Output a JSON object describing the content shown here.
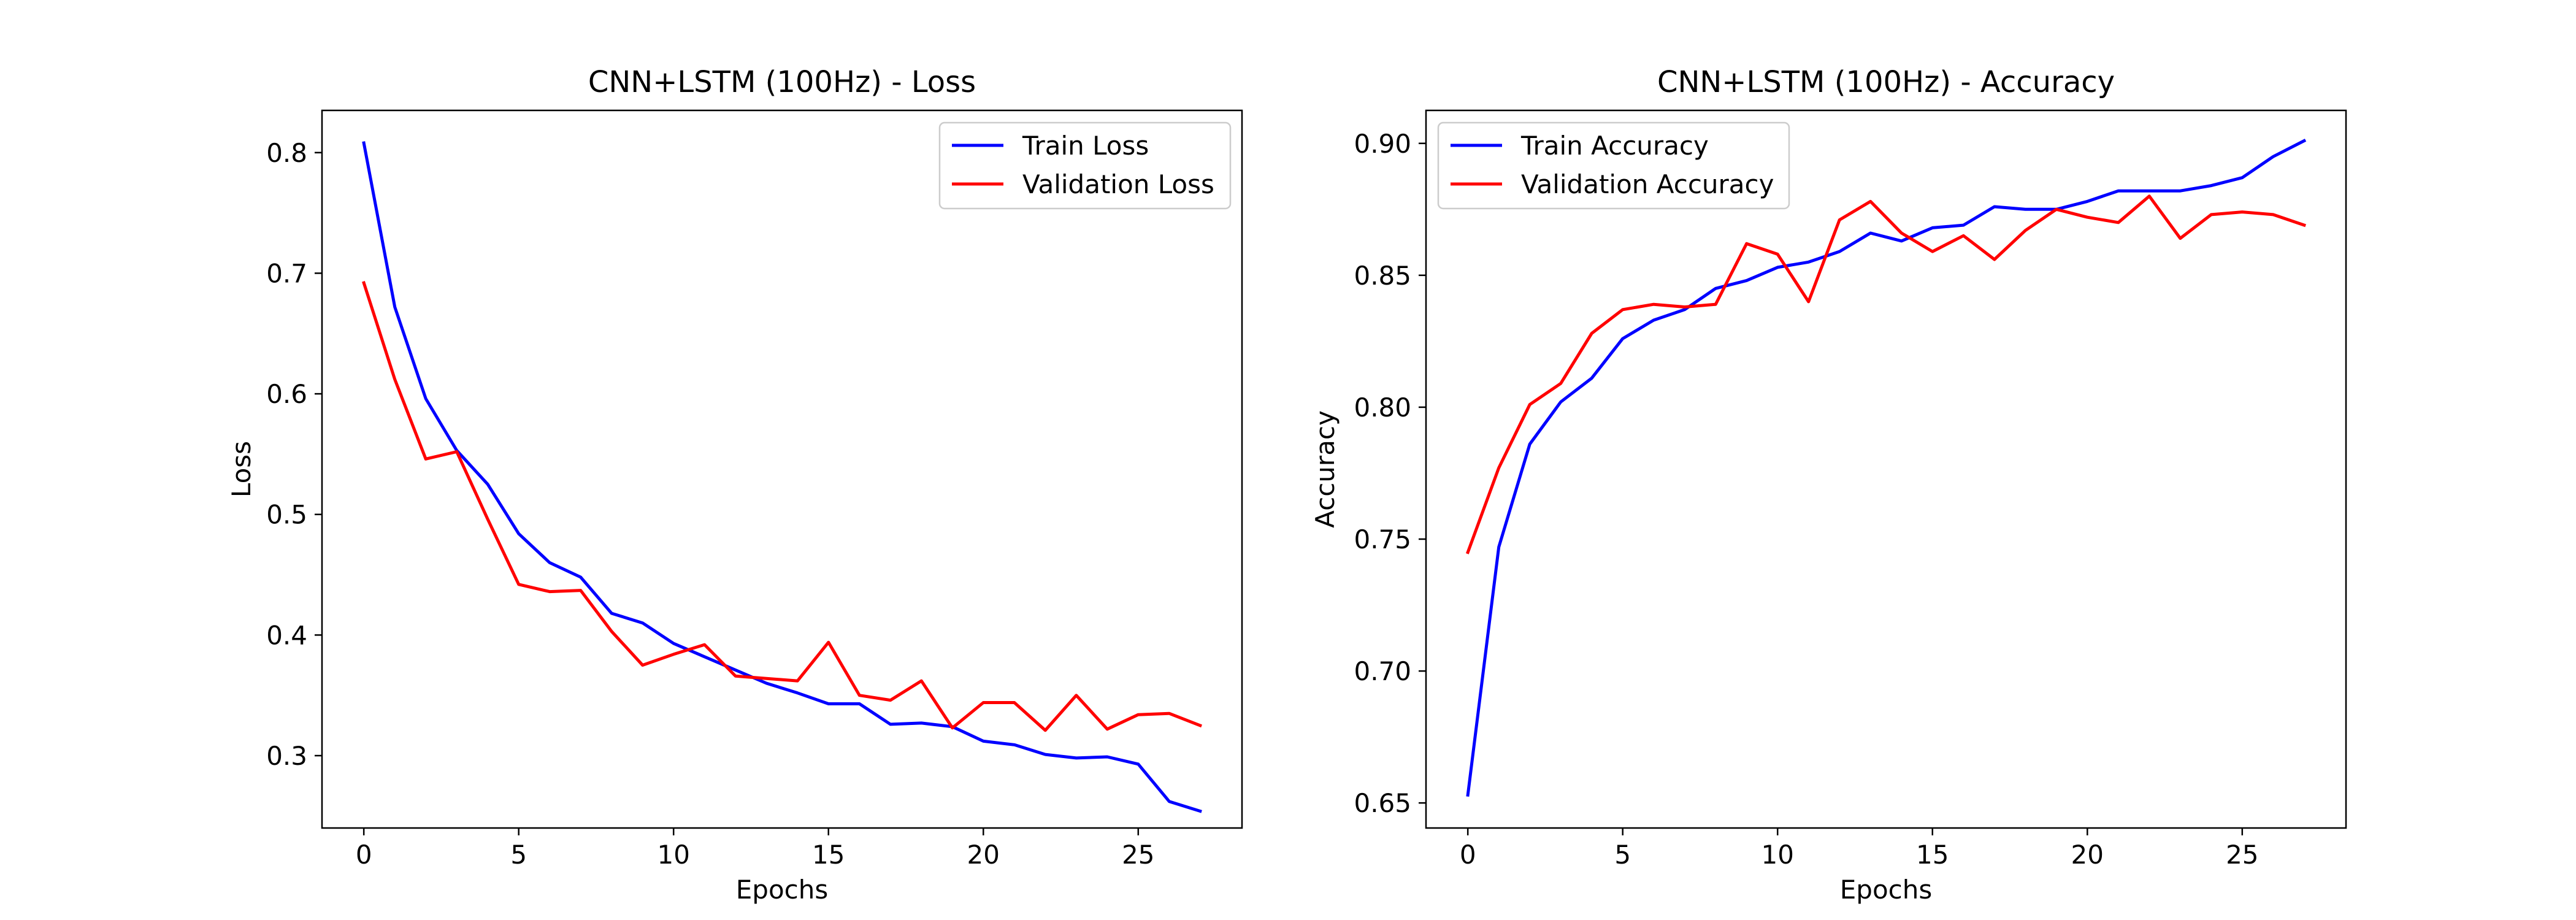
{
  "chart_data": [
    {
      "type": "line",
      "title": "CNN+LSTM (100Hz) - Loss",
      "xlabel": "Epochs",
      "ylabel": "Loss",
      "xlim": [
        -1.35,
        28.35
      ],
      "ylim": [
        0.24,
        0.835
      ],
      "xticks": [
        0,
        5,
        10,
        15,
        20,
        25
      ],
      "yticks": [
        0.3,
        0.4,
        0.5,
        0.6,
        0.7,
        0.8
      ],
      "ytick_labels": [
        "0.3",
        "0.4",
        "0.5",
        "0.6",
        "0.7",
        "0.8"
      ],
      "grid": false,
      "legend_position": "upper right",
      "x": [
        0,
        1,
        2,
        3,
        4,
        5,
        6,
        7,
        8,
        9,
        10,
        11,
        12,
        13,
        14,
        15,
        16,
        17,
        18,
        19,
        20,
        21,
        22,
        23,
        24,
        25,
        26,
        27
      ],
      "series": [
        {
          "name": "Train Loss",
          "color": "#0000ff",
          "values": [
            0.808,
            0.672,
            0.596,
            0.553,
            0.525,
            0.484,
            0.46,
            0.448,
            0.418,
            0.41,
            0.393,
            0.382,
            0.371,
            0.36,
            0.352,
            0.343,
            0.343,
            0.326,
            0.327,
            0.324,
            0.312,
            0.309,
            0.301,
            0.298,
            0.299,
            0.293,
            0.262,
            0.254
          ]
        },
        {
          "name": "Validation Loss",
          "color": "#ff0000",
          "values": [
            0.692,
            0.612,
            0.546,
            0.552,
            0.496,
            0.442,
            0.436,
            0.437,
            0.403,
            0.375,
            0.384,
            0.392,
            0.366,
            0.364,
            0.362,
            0.394,
            0.35,
            0.346,
            0.362,
            0.323,
            0.344,
            0.344,
            0.321,
            0.35,
            0.322,
            0.334,
            0.335,
            0.325
          ]
        }
      ]
    },
    {
      "type": "line",
      "title": "CNN+LSTM (100Hz) - Accuracy",
      "xlabel": "Epochs",
      "ylabel": "Accuracy",
      "xlim": [
        -1.35,
        28.35
      ],
      "ylim": [
        0.6405,
        0.9125
      ],
      "xticks": [
        0,
        5,
        10,
        15,
        20,
        25
      ],
      "yticks": [
        0.65,
        0.7,
        0.75,
        0.8,
        0.85,
        0.9
      ],
      "ytick_labels": [
        "0.65",
        "0.70",
        "0.75",
        "0.80",
        "0.85",
        "0.90"
      ],
      "grid": false,
      "legend_position": "upper left",
      "x": [
        0,
        1,
        2,
        3,
        4,
        5,
        6,
        7,
        8,
        9,
        10,
        11,
        12,
        13,
        14,
        15,
        16,
        17,
        18,
        19,
        20,
        21,
        22,
        23,
        24,
        25,
        26,
        27
      ],
      "series": [
        {
          "name": "Train Accuracy",
          "color": "#0000ff",
          "values": [
            0.653,
            0.747,
            0.786,
            0.802,
            0.811,
            0.826,
            0.833,
            0.837,
            0.845,
            0.848,
            0.853,
            0.855,
            0.859,
            0.866,
            0.863,
            0.868,
            0.869,
            0.876,
            0.875,
            0.875,
            0.878,
            0.882,
            0.882,
            0.882,
            0.884,
            0.887,
            0.895,
            0.901
          ]
        },
        {
          "name": "Validation Accuracy",
          "color": "#ff0000",
          "values": [
            0.745,
            0.777,
            0.801,
            0.809,
            0.828,
            0.837,
            0.839,
            0.838,
            0.839,
            0.862,
            0.858,
            0.84,
            0.871,
            0.878,
            0.866,
            0.859,
            0.865,
            0.856,
            0.867,
            0.875,
            0.872,
            0.87,
            0.88,
            0.864,
            0.873,
            0.874,
            0.873,
            0.869
          ]
        }
      ]
    }
  ]
}
